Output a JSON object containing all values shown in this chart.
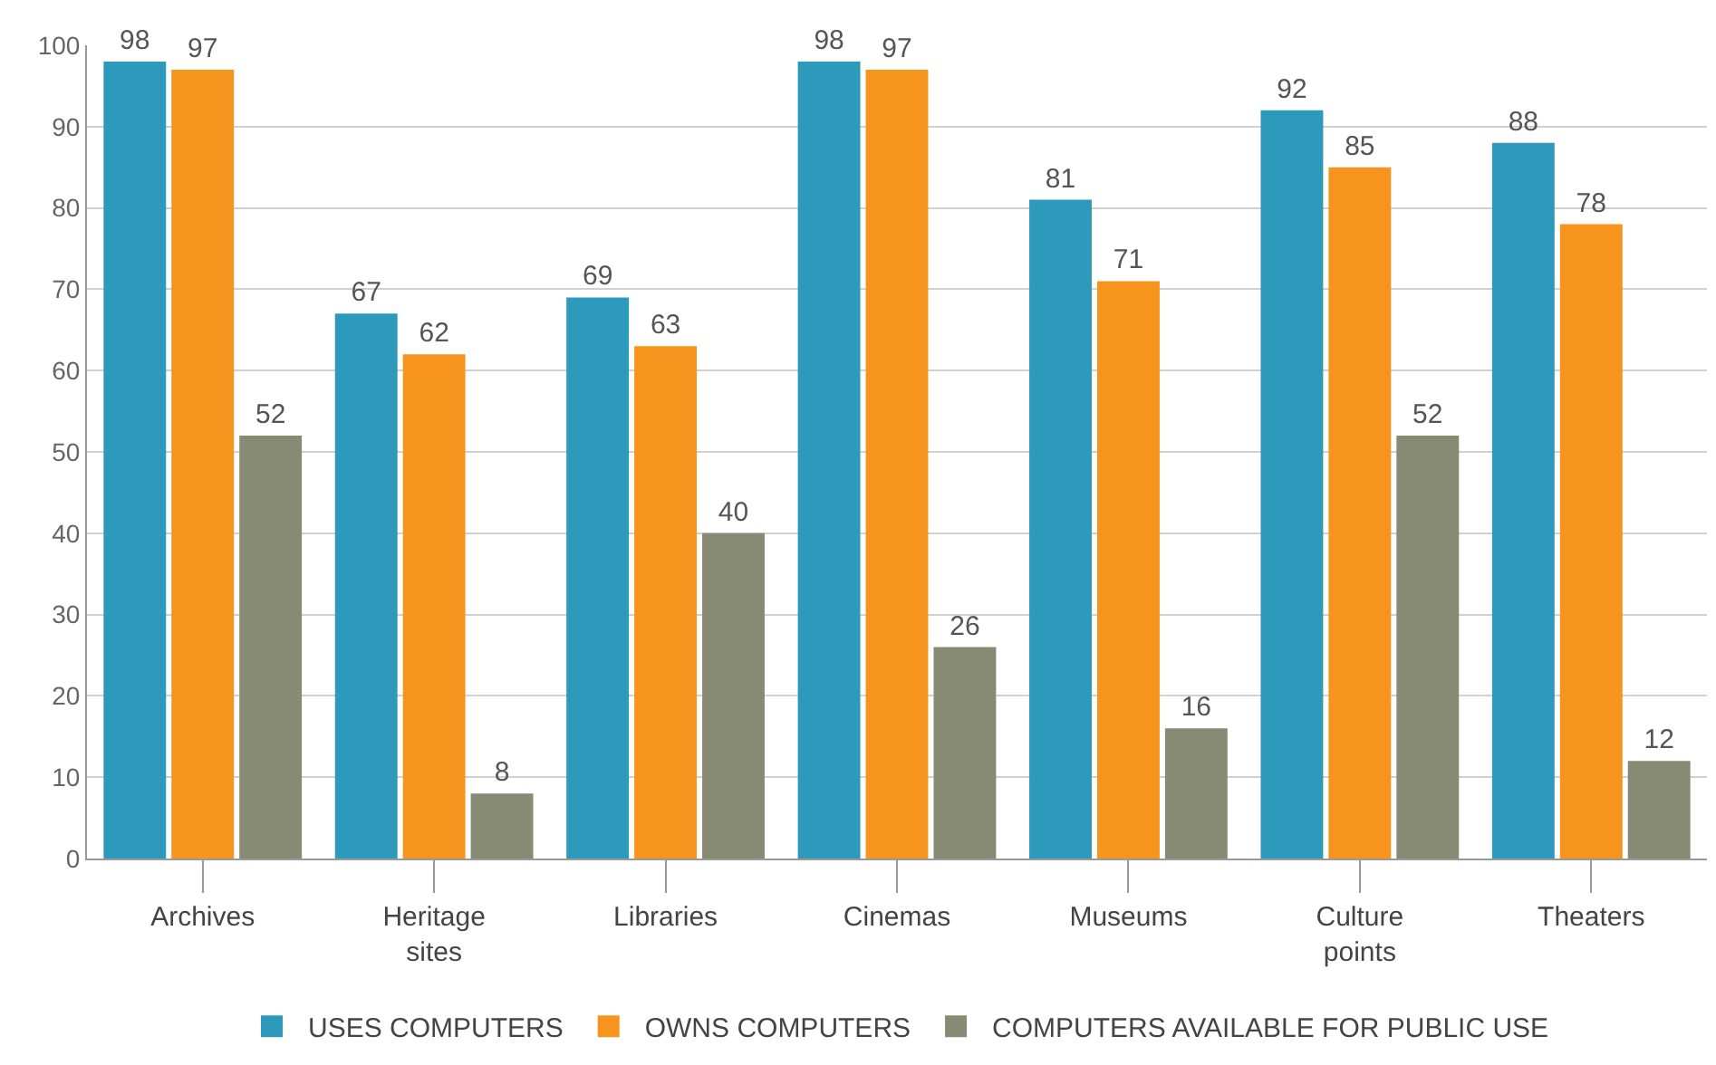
{
  "chart_data": {
    "type": "bar",
    "categories": [
      "Archives",
      "Heritage sites",
      "Libraries",
      "Cinemas",
      "Museums",
      "Culture points",
      "Theaters"
    ],
    "series": [
      {
        "name": "USES COMPUTERS",
        "color": "#2e9abb",
        "values": [
          98,
          67,
          69,
          98,
          81,
          92,
          88
        ]
      },
      {
        "name": "OWNS COMPUTERS",
        "color": "#f7941d",
        "values": [
          97,
          62,
          63,
          97,
          71,
          85,
          78
        ]
      },
      {
        "name": "COMPUTERS AVAILABLE FOR PUBLIC USE",
        "color": "#878b74",
        "values": [
          52,
          8,
          40,
          26,
          16,
          52,
          12
        ]
      }
    ],
    "ylim": [
      0,
      100
    ],
    "yticks": [
      0,
      10,
      20,
      30,
      40,
      50,
      60,
      70,
      80,
      90,
      100
    ],
    "grid": "y",
    "legend": "bottom",
    "data_labels": true
  }
}
